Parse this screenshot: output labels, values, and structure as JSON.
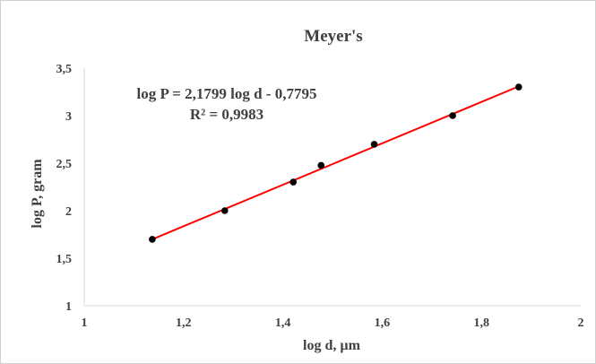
{
  "chart_data": {
    "type": "scatter",
    "title": "Meyer's",
    "xlabel": "log d, µm",
    "ylabel": "log P, gram",
    "xlim": [
      1,
      2
    ],
    "ylim": [
      1,
      3.5
    ],
    "x_ticks": [
      "1",
      "1,2",
      "1,4",
      "1,6",
      "1,8",
      "2"
    ],
    "y_ticks": [
      "1",
      "1,5",
      "2",
      "2,5",
      "3",
      "3,5"
    ],
    "grid": false,
    "legend": "none",
    "series": [
      {
        "x": [
          1.137,
          1.283,
          1.421,
          1.477,
          1.584,
          1.742,
          1.875
        ],
        "y": [
          1.699,
          2.0,
          2.301,
          2.477,
          2.699,
          3.0,
          3.301
        ],
        "color": "#000000"
      }
    ],
    "trendline": {
      "type": "linear",
      "slope": 2.1799,
      "intercept": -0.7795,
      "x_range": [
        1.137,
        1.875
      ],
      "color": "#ff0000"
    },
    "annotations": {
      "equation": "log P = 2,1799 log d - 0,7795",
      "r_squared": "R² = 0,9983"
    }
  }
}
